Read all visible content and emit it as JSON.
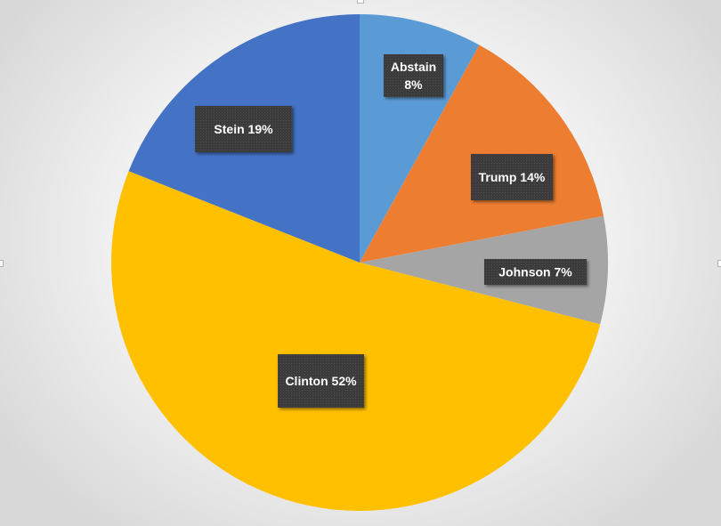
{
  "chart_data": {
    "type": "pie",
    "title": "",
    "slices": [
      {
        "label": "Abstain",
        "value": 8,
        "percent_label": "8%",
        "color": "#5B9BD5"
      },
      {
        "label": "Trump",
        "value": 14,
        "percent_label": "14%",
        "color": "#ED7D31"
      },
      {
        "label": "Johnson",
        "value": 7,
        "percent_label": "7%",
        "color": "#A5A5A5"
      },
      {
        "label": "Clinton",
        "value": 52,
        "percent_label": "52%",
        "color": "#FFC000"
      },
      {
        "label": "Stein",
        "value": 19,
        "percent_label": "19%",
        "color": "#4472C4"
      }
    ],
    "start": "12 o'clock",
    "direction": "clockwise",
    "legend": "none",
    "data_label_style": {
      "background": "#404040",
      "text_color": "#ffffff"
    }
  }
}
